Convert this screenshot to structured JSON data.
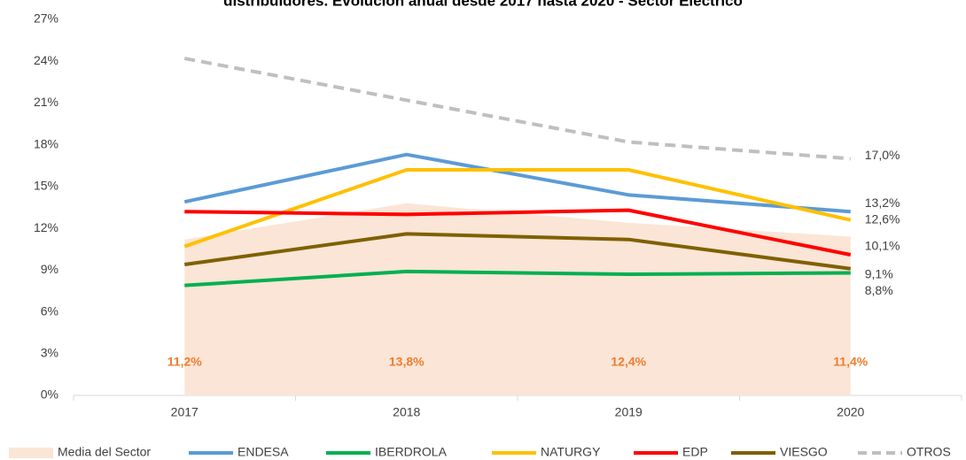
{
  "chart_data": {
    "type": "line",
    "title": "distribuidores. Evolución anual desde 2017 hasta 2020 - Sector Eléctrico",
    "categories": [
      "2017",
      "2018",
      "2019",
      "2020"
    ],
    "ylim": [
      0,
      27
    ],
    "yticks": [
      {
        "value": 0,
        "label": "0%"
      },
      {
        "value": 3,
        "label": "3%"
      },
      {
        "value": 6,
        "label": "6%"
      },
      {
        "value": 9,
        "label": "9%"
      },
      {
        "value": 12,
        "label": "12%"
      },
      {
        "value": 15,
        "label": "15%"
      },
      {
        "value": 18,
        "label": "18%"
      },
      {
        "value": 21,
        "label": "21%"
      },
      {
        "value": 24,
        "label": "24%"
      },
      {
        "value": 27,
        "label": "27%"
      }
    ],
    "legend": "bottom",
    "series": [
      {
        "name": "Media del Sector",
        "type": "area",
        "color": "#fbe5d6",
        "values": [
          11.2,
          13.8,
          12.4,
          11.4
        ],
        "value_labels": [
          "11,2%",
          "13,8%",
          "12,4%",
          "11,4%"
        ]
      },
      {
        "name": "ENDESA",
        "type": "line",
        "color": "#5b9bd5",
        "values": [
          13.9,
          17.3,
          14.4,
          13.2
        ],
        "value_labels": [
          null,
          null,
          null,
          "13,2%"
        ]
      },
      {
        "name": "IBERDROLA",
        "type": "line",
        "color": "#00b050",
        "values": [
          7.9,
          8.9,
          8.7,
          8.8
        ],
        "value_labels": [
          null,
          null,
          null,
          "8,8%"
        ]
      },
      {
        "name": "NATURGY",
        "type": "line",
        "color": "#ffc000",
        "values": [
          10.7,
          16.2,
          16.2,
          12.6
        ],
        "value_labels": [
          null,
          null,
          null,
          "12,6%"
        ]
      },
      {
        "name": "EDP",
        "type": "line",
        "color": "#ff0000",
        "values": [
          13.2,
          13.0,
          13.3,
          10.1
        ],
        "value_labels": [
          null,
          null,
          null,
          "10,1%"
        ]
      },
      {
        "name": "VIESGO",
        "type": "line",
        "color": "#7f6000",
        "values": [
          9.4,
          11.6,
          11.2,
          9.1
        ],
        "value_labels": [
          null,
          null,
          null,
          "9,1%"
        ]
      },
      {
        "name": "OTROS",
        "type": "line",
        "dashed": true,
        "color": "#bfbfbf",
        "values": [
          24.2,
          21.2,
          18.2,
          17.0
        ],
        "value_labels": [
          null,
          null,
          null,
          "17,0%"
        ]
      }
    ]
  }
}
